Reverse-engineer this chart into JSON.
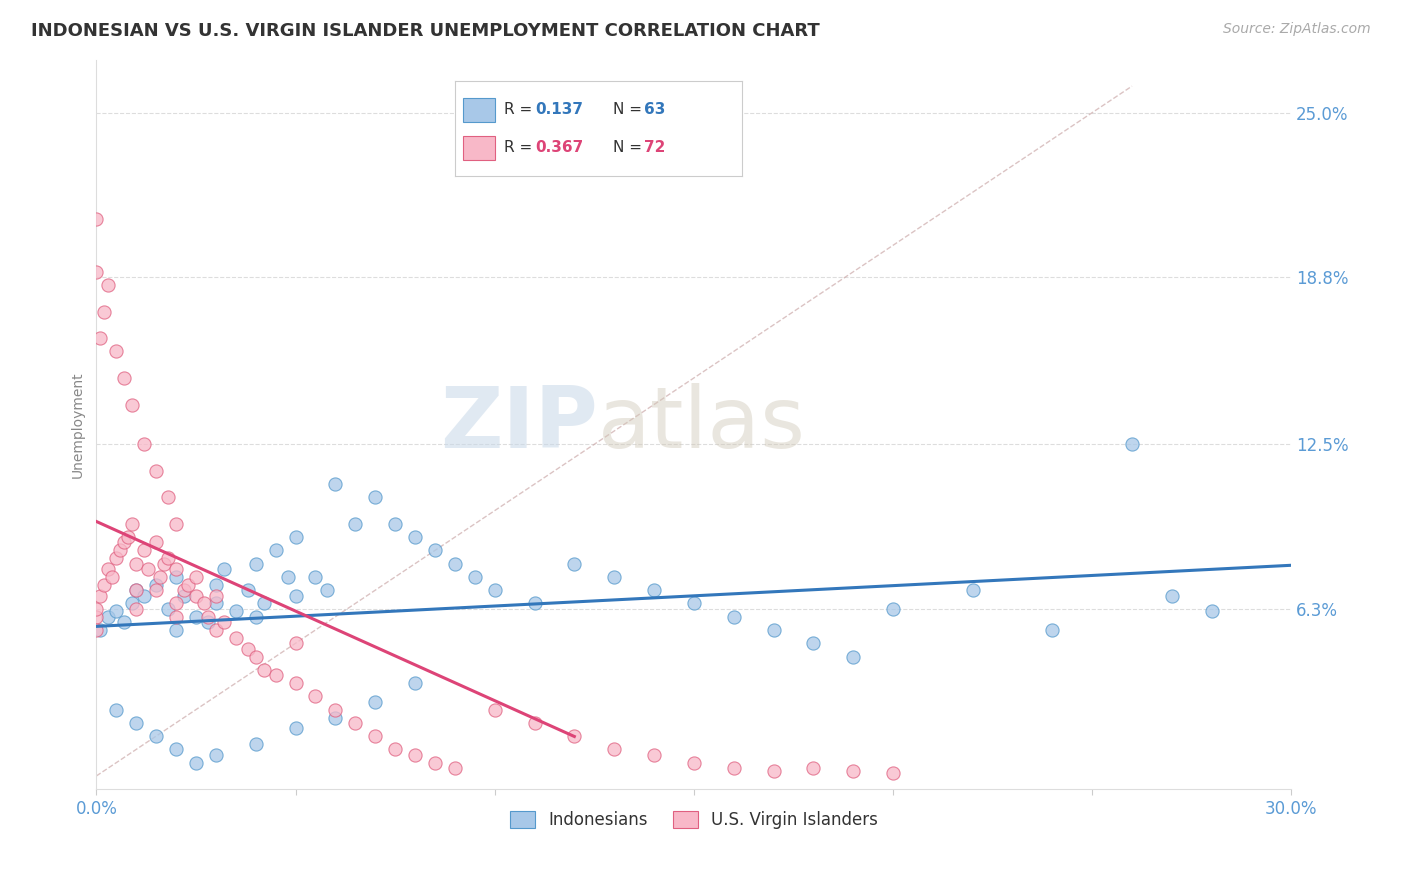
{
  "title": "INDONESIAN VS U.S. VIRGIN ISLANDER UNEMPLOYMENT CORRELATION CHART",
  "source": "Source: ZipAtlas.com",
  "ylabel": "Unemployment",
  "xlim": [
    0.0,
    0.3
  ],
  "ylim": [
    -0.005,
    0.27
  ],
  "yticks": [
    0.063,
    0.125,
    0.188,
    0.25
  ],
  "ytick_labels": [
    "6.3%",
    "12.5%",
    "18.8%",
    "25.0%"
  ],
  "xticks": [
    0.0,
    0.05,
    0.1,
    0.15,
    0.2,
    0.25,
    0.3
  ],
  "xtick_labels": [
    "0.0%",
    "",
    "",
    "",
    "",
    "",
    "30.0%"
  ],
  "blue_fill": "#a8c8e8",
  "blue_edge": "#5599cc",
  "pink_fill": "#f8b8c8",
  "pink_edge": "#e06080",
  "blue_line": "#3377bb",
  "pink_line": "#dd4477",
  "diag_color": "#ccaaaa",
  "title_color": "#333333",
  "axis_label_color": "#888888",
  "tick_color": "#5b9bd5",
  "grid_color": "#dddddd",
  "watermark_zip": "ZIP",
  "watermark_atlas": "atlas",
  "legend_R_blue": "0.137",
  "legend_N_blue": "63",
  "legend_R_pink": "0.367",
  "legend_N_pink": "72",
  "blue_x": [
    0.001,
    0.003,
    0.005,
    0.007,
    0.009,
    0.01,
    0.012,
    0.015,
    0.018,
    0.02,
    0.02,
    0.022,
    0.025,
    0.028,
    0.03,
    0.03,
    0.032,
    0.035,
    0.038,
    0.04,
    0.04,
    0.042,
    0.045,
    0.048,
    0.05,
    0.05,
    0.055,
    0.058,
    0.06,
    0.065,
    0.07,
    0.075,
    0.08,
    0.085,
    0.09,
    0.095,
    0.1,
    0.11,
    0.12,
    0.13,
    0.14,
    0.15,
    0.16,
    0.17,
    0.18,
    0.19,
    0.2,
    0.22,
    0.24,
    0.26,
    0.27,
    0.28,
    0.005,
    0.01,
    0.015,
    0.02,
    0.025,
    0.03,
    0.04,
    0.05,
    0.06,
    0.07,
    0.08
  ],
  "blue_y": [
    0.055,
    0.06,
    0.062,
    0.058,
    0.065,
    0.07,
    0.068,
    0.072,
    0.063,
    0.075,
    0.055,
    0.068,
    0.06,
    0.058,
    0.072,
    0.065,
    0.078,
    0.062,
    0.07,
    0.08,
    0.06,
    0.065,
    0.085,
    0.075,
    0.09,
    0.068,
    0.075,
    0.07,
    0.11,
    0.095,
    0.105,
    0.095,
    0.09,
    0.085,
    0.08,
    0.075,
    0.07,
    0.065,
    0.08,
    0.075,
    0.07,
    0.065,
    0.06,
    0.055,
    0.05,
    0.045,
    0.063,
    0.07,
    0.055,
    0.125,
    0.068,
    0.062,
    0.025,
    0.02,
    0.015,
    0.01,
    0.005,
    0.008,
    0.012,
    0.018,
    0.022,
    0.028,
    0.035
  ],
  "pink_x": [
    0.0,
    0.0,
    0.0,
    0.001,
    0.002,
    0.003,
    0.004,
    0.005,
    0.006,
    0.007,
    0.008,
    0.009,
    0.01,
    0.01,
    0.01,
    0.012,
    0.013,
    0.015,
    0.015,
    0.016,
    0.017,
    0.018,
    0.02,
    0.02,
    0.02,
    0.022,
    0.023,
    0.025,
    0.025,
    0.027,
    0.028,
    0.03,
    0.03,
    0.032,
    0.035,
    0.038,
    0.04,
    0.042,
    0.045,
    0.05,
    0.05,
    0.055,
    0.06,
    0.065,
    0.07,
    0.075,
    0.08,
    0.085,
    0.09,
    0.1,
    0.11,
    0.12,
    0.13,
    0.14,
    0.15,
    0.16,
    0.17,
    0.18,
    0.19,
    0.2,
    0.0,
    0.0,
    0.001,
    0.002,
    0.003,
    0.005,
    0.007,
    0.009,
    0.012,
    0.015,
    0.018,
    0.02
  ],
  "pink_y": [
    0.06,
    0.063,
    0.055,
    0.068,
    0.072,
    0.078,
    0.075,
    0.082,
    0.085,
    0.088,
    0.09,
    0.095,
    0.08,
    0.07,
    0.063,
    0.085,
    0.078,
    0.088,
    0.07,
    0.075,
    0.08,
    0.082,
    0.078,
    0.065,
    0.06,
    0.07,
    0.072,
    0.075,
    0.068,
    0.065,
    0.06,
    0.055,
    0.068,
    0.058,
    0.052,
    0.048,
    0.045,
    0.04,
    0.038,
    0.035,
    0.05,
    0.03,
    0.025,
    0.02,
    0.015,
    0.01,
    0.008,
    0.005,
    0.003,
    0.025,
    0.02,
    0.015,
    0.01,
    0.008,
    0.005,
    0.003,
    0.002,
    0.003,
    0.002,
    0.001,
    0.19,
    0.21,
    0.165,
    0.175,
    0.185,
    0.16,
    0.15,
    0.14,
    0.125,
    0.115,
    0.105,
    0.095
  ]
}
